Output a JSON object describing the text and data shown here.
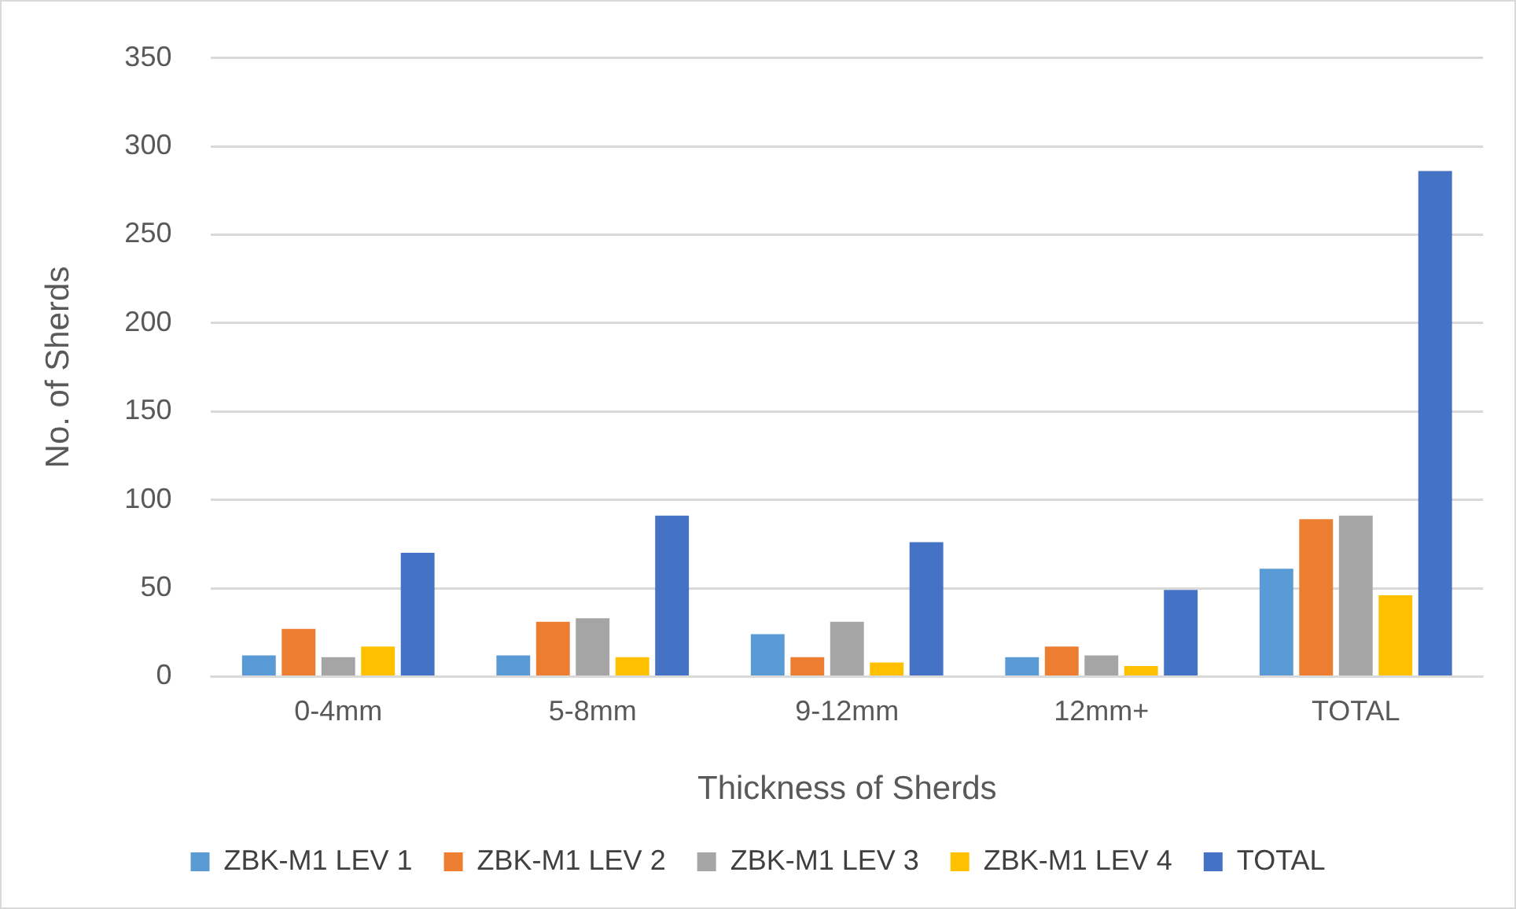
{
  "chart_data": {
    "type": "bar",
    "xlabel": "Thickness of Sherds",
    "ylabel": "No. of Sherds",
    "categories": [
      "0-4mm",
      "5-8mm",
      "9-12mm",
      "12mm+",
      "TOTAL"
    ],
    "series": [
      {
        "name": "ZBK-M1 LEV 1",
        "color": "#5b9bd5",
        "values": [
          12,
          12,
          24,
          11,
          61
        ]
      },
      {
        "name": "ZBK-M1 LEV 2",
        "color": "#ed7d31",
        "values": [
          27,
          31,
          11,
          17,
          89
        ]
      },
      {
        "name": "ZBK-M1 LEV 3",
        "color": "#a5a5a5",
        "values": [
          11,
          33,
          31,
          12,
          91
        ]
      },
      {
        "name": "ZBK-M1 LEV 4",
        "color": "#ffc000",
        "values": [
          17,
          11,
          8,
          6,
          46
        ]
      },
      {
        "name": "TOTAL",
        "color": "#4472c4",
        "values": [
          70,
          91,
          76,
          49,
          286
        ]
      }
    ],
    "ylim": [
      0,
      350
    ],
    "yticks": [
      0,
      50,
      100,
      150,
      200,
      250,
      300,
      350
    ],
    "grid": "y",
    "legend": "bottom"
  }
}
